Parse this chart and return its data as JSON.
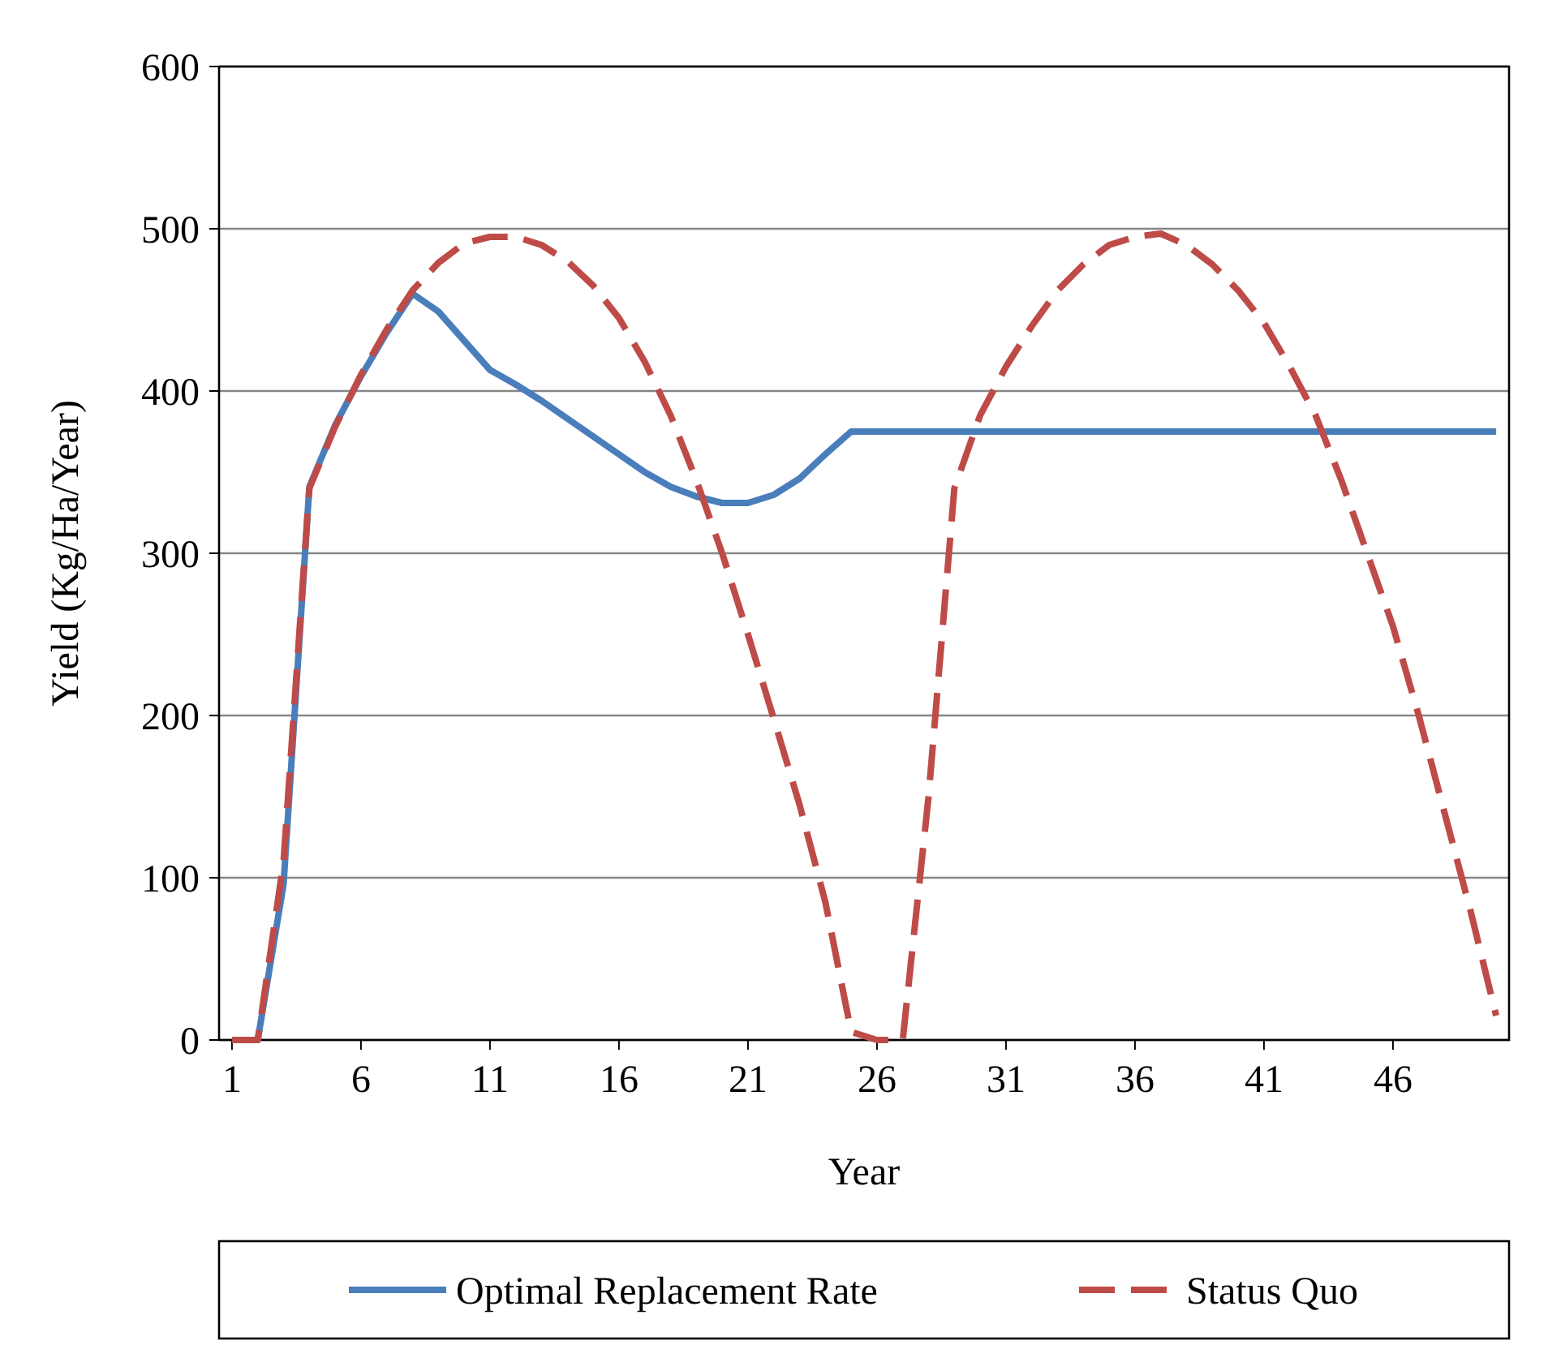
{
  "chart_data": {
    "type": "line",
    "xlabel": "Year",
    "ylabel": "Yield (Kg/Ha/Year)",
    "x": [
      1,
      2,
      3,
      4,
      5,
      6,
      7,
      8,
      9,
      10,
      11,
      12,
      13,
      14,
      15,
      16,
      17,
      18,
      19,
      20,
      21,
      22,
      23,
      24,
      25,
      26,
      27,
      28,
      29,
      30,
      31,
      32,
      33,
      34,
      35,
      36,
      37,
      38,
      39,
      40,
      41,
      42,
      43,
      44,
      45,
      46,
      47,
      48,
      49,
      50
    ],
    "xlim": [
      0.5,
      50.5
    ],
    "xticks": [
      1,
      6,
      11,
      16,
      21,
      26,
      31,
      36,
      41,
      46
    ],
    "ylim": [
      0,
      600
    ],
    "yticks": [
      0,
      100,
      200,
      300,
      400,
      500,
      600
    ],
    "grid": "y",
    "legend": "bottom",
    "series": [
      {
        "name": "Optimal Replacement Rate",
        "color": "#4a7ebb",
        "line_style": "solid",
        "values": [
          0,
          0,
          96,
          341,
          379,
          409,
          436,
          460,
          449,
          431,
          413,
          404,
          394,
          383,
          372,
          361,
          350,
          341,
          335,
          331,
          331,
          336,
          346,
          361,
          375,
          375,
          375,
          375,
          375,
          375,
          375,
          375,
          375,
          375,
          375,
          375,
          375,
          375,
          375,
          375,
          375,
          375,
          375,
          375,
          375,
          375,
          375,
          375,
          375,
          375
        ]
      },
      {
        "name": "Status Quo",
        "color": "#be4b48",
        "line_style": "dashed",
        "values": [
          0,
          0,
          110,
          340,
          378,
          410,
          438,
          462,
          479,
          491,
          495,
          495,
          490,
          480,
          465,
          445,
          418,
          385,
          345,
          300,
          250,
          198,
          145,
          85,
          5,
          0,
          0,
          150,
          340,
          385,
          415,
          440,
          462,
          478,
          490,
          495,
          497,
          490,
          478,
          462,
          442,
          415,
          385,
          345,
          300,
          255,
          200,
          140,
          80,
          15
        ]
      }
    ]
  }
}
